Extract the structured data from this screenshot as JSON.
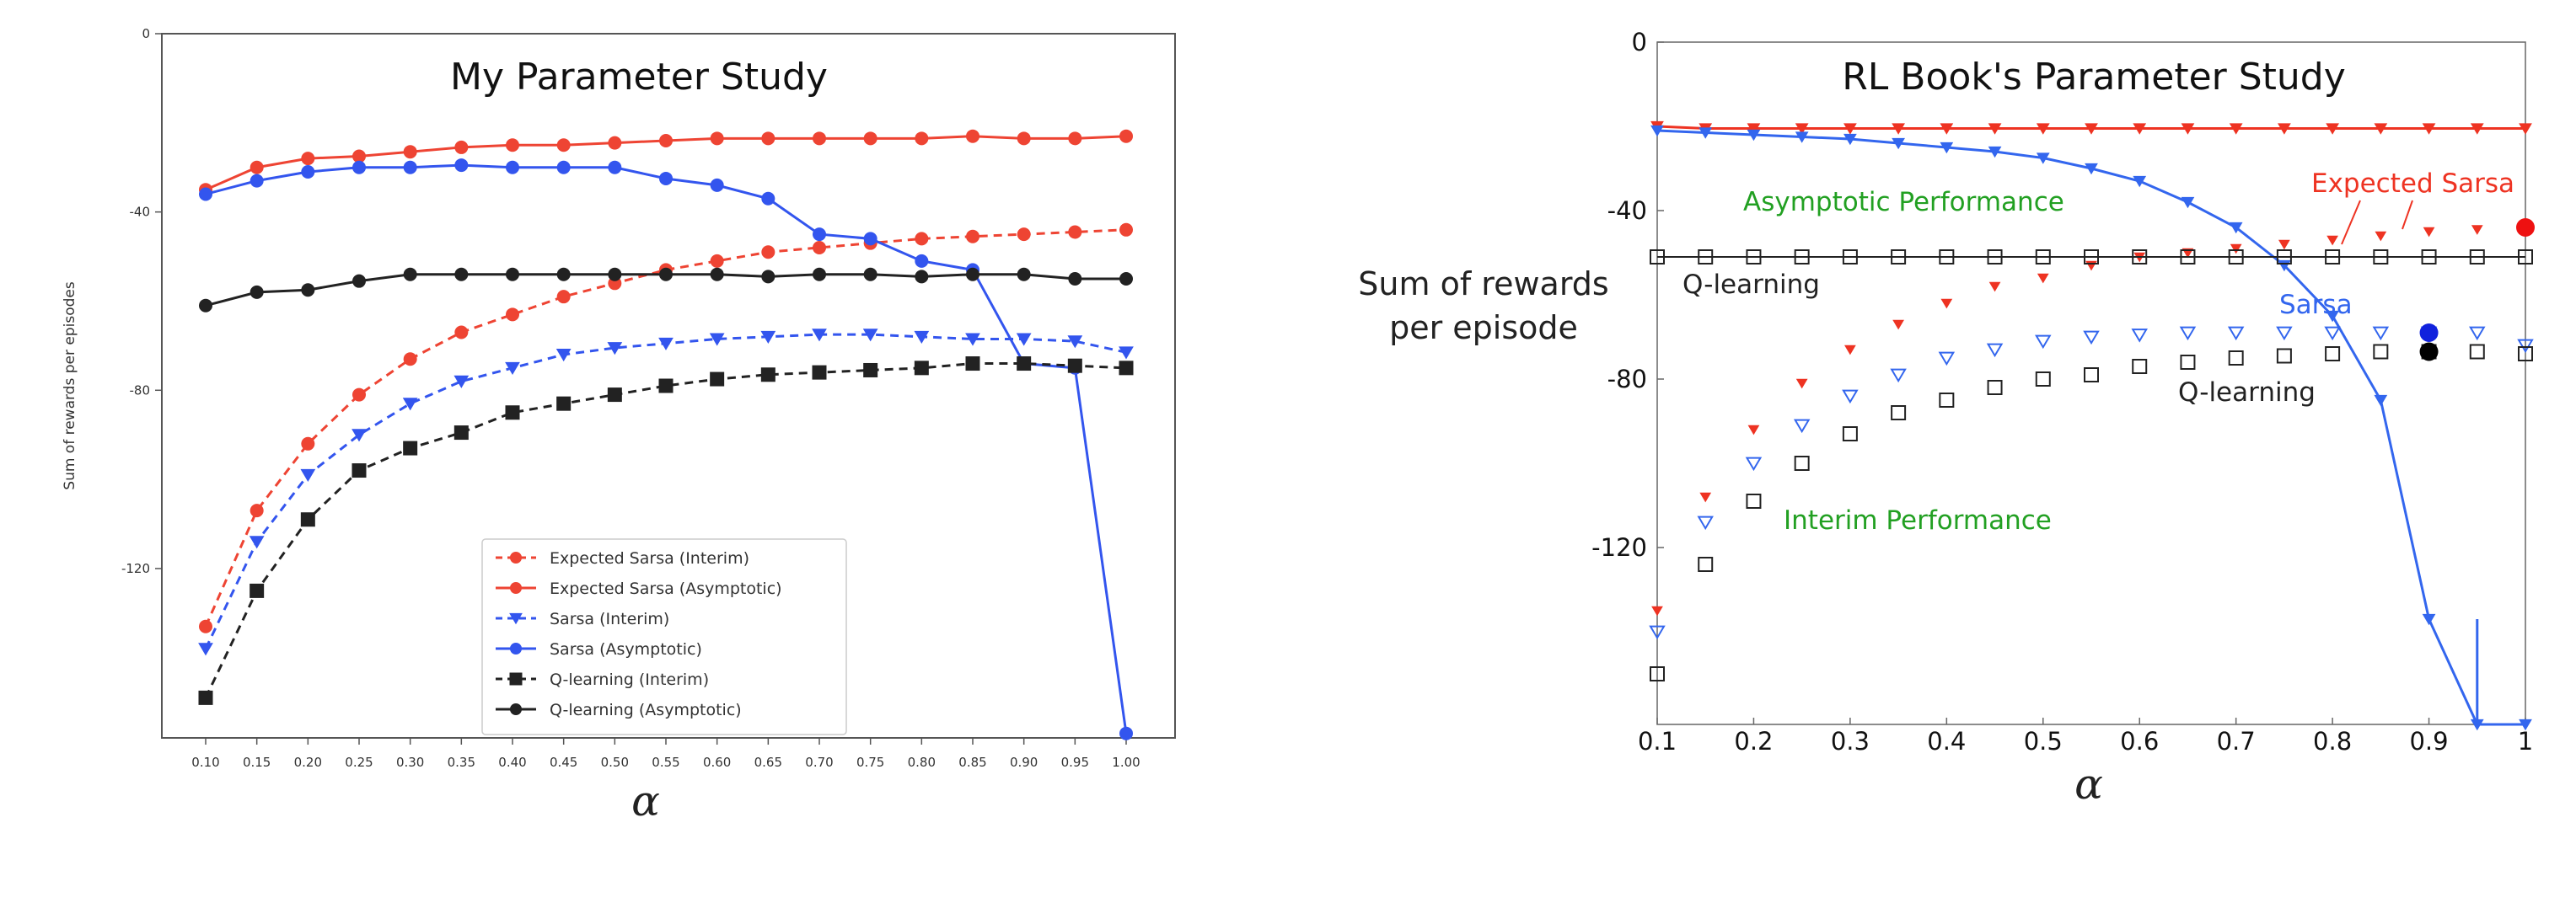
{
  "chart_data": [
    {
      "type": "line",
      "title": "My Parameter Study",
      "xlabel": "α",
      "ylabel": "Sum of rewards per episodes",
      "x": [
        0.1,
        0.15,
        0.2,
        0.25,
        0.3,
        0.35,
        0.4,
        0.45,
        0.5,
        0.55,
        0.6,
        0.65,
        0.7,
        0.75,
        0.8,
        0.85,
        0.9,
        0.95,
        1.0
      ],
      "x_tick_labels": [
        "0.10",
        "0.15",
        "0.20",
        "0.25",
        "0.30",
        "0.35",
        "0.40",
        "0.45",
        "0.50",
        "0.55",
        "0.60",
        "0.65",
        "0.70",
        "0.75",
        "0.80",
        "0.85",
        "0.90",
        "0.95",
        "1.00"
      ],
      "y_ticks": [
        0,
        -40,
        -80,
        -120
      ],
      "y_tick_labels": [
        "0",
        "-40",
        "-80",
        "-120"
      ],
      "ylim": [
        -158,
        0
      ],
      "grid": false,
      "legend_position": "lower-right",
      "series": [
        {
          "name": "Expected Sarsa (Interim)",
          "color": "#ee4433",
          "style": "dashed",
          "marker": "circle",
          "values": [
            -133,
            -107,
            -92,
            -81,
            -73,
            -67,
            -63,
            -59,
            -56,
            -53,
            -51,
            -49,
            -48,
            -47,
            -46,
            -45.5,
            -45,
            -44.5,
            -44
          ]
        },
        {
          "name": "Expected Sarsa (Asymptotic)",
          "color": "#ee4433",
          "style": "solid",
          "marker": "circle",
          "values": [
            -35,
            -30,
            -28,
            -27.5,
            -26.5,
            -25.5,
            -25,
            -25,
            -24.5,
            -24,
            -23.5,
            -23.5,
            -23.5,
            -23.5,
            -23.5,
            -23,
            -23.5,
            -23.5,
            -23
          ]
        },
        {
          "name": "Sarsa (Interim)",
          "color": "#3355ee",
          "style": "dashed",
          "marker": "triangle",
          "values": [
            -138,
            -114,
            -99,
            -90,
            -83,
            -78,
            -75,
            -72,
            -70.5,
            -69.5,
            -68.5,
            -68,
            -67.5,
            -67.5,
            -68,
            -68.5,
            -68.5,
            -69,
            -71.5
          ]
        },
        {
          "name": "Sarsa (Asymptotic)",
          "color": "#3355ee",
          "style": "solid",
          "marker": "circle",
          "values": [
            -36,
            -33,
            -31,
            -30,
            -30,
            -29.5,
            -30,
            -30,
            -30,
            -32.5,
            -34,
            -37,
            -45,
            -46,
            -51,
            -53,
            -74,
            -75,
            -157
          ]
        },
        {
          "name": "Q-learning (Interim)",
          "color": "#222222",
          "style": "dashed",
          "marker": "square",
          "values": [
            -149,
            -125,
            -109,
            -98,
            -93,
            -89.5,
            -85,
            -83,
            -81,
            -79,
            -77.5,
            -76.5,
            -76,
            -75.5,
            -75,
            -74,
            -74,
            -74.5,
            -75
          ]
        },
        {
          "name": "Q-learning (Asymptotic)",
          "color": "#222222",
          "style": "solid",
          "marker": "circle",
          "values": [
            -61,
            -58,
            -57.5,
            -55.5,
            -54,
            -54,
            -54,
            -54,
            -54,
            -54,
            -54,
            -54.5,
            -54,
            -54,
            -54.5,
            -54,
            -54,
            -55,
            -55
          ]
        }
      ]
    },
    {
      "type": "line",
      "title": "RL Book's Parameter Study",
      "xlabel": "α",
      "ylabel": "Sum of rewards per episode",
      "x": [
        0.1,
        0.15,
        0.2,
        0.25,
        0.3,
        0.35,
        0.4,
        0.45,
        0.5,
        0.55,
        0.6,
        0.65,
        0.7,
        0.75,
        0.8,
        0.85,
        0.9,
        0.95,
        1
      ],
      "x_tick_labels": [
        "0.1",
        "0.2",
        "0.3",
        "0.4",
        "0.5",
        "0.6",
        "0.7",
        "0.8",
        "0.9",
        "1"
      ],
      "y_ticks": [
        0,
        -40,
        -80,
        -120
      ],
      "y_tick_labels": [
        "0",
        "-40",
        "-80",
        "-120"
      ],
      "ylim": [
        -162,
        0
      ],
      "grid": false,
      "series": [
        {
          "color": "#ee3322",
          "style": "solid",
          "marker": "triangle",
          "values": [
            -20,
            -20.5,
            -20.5,
            -20.5,
            -20.5,
            -20.5,
            -20.5,
            -20.5,
            -20.5,
            -20.5,
            -20.5,
            -20.5,
            -20.5,
            -20.5,
            -20.5,
            -20.5,
            -20.5,
            -20.5,
            -20.5
          ]
        },
        {
          "color": "#ee3322",
          "style": "markers",
          "marker": "triangle",
          "values": [
            -135,
            -108,
            -92,
            -81,
            -73,
            -67,
            -62,
            -58,
            -56,
            -53,
            -51,
            -50,
            -49,
            -48,
            -47,
            -46,
            -45,
            -44.5,
            -44
          ]
        },
        {
          "color": "#3366ee",
          "style": "solid",
          "marker": "triangle",
          "values": [
            -21,
            -21.5,
            -22,
            -22.5,
            -23,
            -24,
            -25,
            -26,
            -27.5,
            -30,
            -33,
            -38,
            -44,
            -53,
            -65,
            -85,
            -137,
            -162,
            -162
          ]
        },
        {
          "color": "#3366ee",
          "style": "markers",
          "marker": "triangle",
          "values": [
            -140,
            -114,
            -100,
            -91,
            -84,
            -79,
            -75,
            -73,
            -71,
            -70,
            -69.5,
            -69,
            -69,
            -69,
            -69,
            -69,
            -69,
            -69,
            -72
          ]
        },
        {
          "color": "#222222",
          "style": "solid",
          "marker": "square",
          "values": [
            -51,
            -51,
            -51,
            -51,
            -51,
            -51,
            -51,
            -51,
            -51,
            -51,
            -51,
            -51,
            -51,
            -51,
            -51,
            -51,
            -51,
            -51,
            -51
          ]
        },
        {
          "color": "#222222",
          "style": "markers",
          "marker": "square",
          "values": [
            -150,
            -124,
            -109,
            -100,
            -93,
            -88,
            -85,
            -82,
            -80,
            -79,
            -77,
            -76,
            -75,
            -74.5,
            -74,
            -73.5,
            -73.5,
            -73.5,
            -74
          ]
        }
      ],
      "highlight_points": [
        {
          "x": 0.9,
          "y": -69,
          "color": "#1122dd"
        },
        {
          "x": 0.9,
          "y": -73.5,
          "color": "#000000"
        },
        {
          "x": 1,
          "y": -44,
          "color": "#ee1111"
        }
      ],
      "annotations": [
        {
          "text": "Asymptotic Performance",
          "color": "#22a022"
        },
        {
          "text": "Interim Performance",
          "color": "#22a022"
        },
        {
          "text": "Expected Sarsa",
          "color": "#ee3322"
        },
        {
          "text": "Q-learning",
          "color": "#222222"
        },
        {
          "text": "Sarsa",
          "color": "#3366ee"
        },
        {
          "text": "Q-learning",
          "color": "#222222"
        }
      ]
    }
  ]
}
